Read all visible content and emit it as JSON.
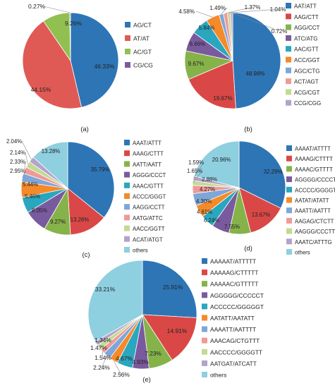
{
  "chart_data": [
    {
      "type": "pie",
      "panel_label": "(a)",
      "categories": [
        "AG/CT",
        "AT/AT",
        "AC/GT",
        "CG/CG"
      ],
      "values": [
        46.33,
        44.15,
        9.26,
        0.27
      ],
      "labels": [
        "46.33%",
        "44.15%",
        "9.26%",
        "0.27%"
      ],
      "colors": [
        "#2e75b6",
        "#e05a55",
        "#92c050",
        "#7a5a9e"
      ]
    },
    {
      "type": "pie",
      "panel_label": "(b)",
      "categories": [
        "AAT/ATT",
        "AAG/CTT",
        "AGG/CCT",
        "ATC/ATG",
        "AAC/GTT",
        "ACC/GGT",
        "AGC/CTG",
        "ACT/AGT",
        "ACG/CGT",
        "CCG/CGG"
      ],
      "values": [
        48.98,
        19.67,
        9.67,
        6.66,
        5.84,
        4.58,
        1.49,
        1.37,
        1.04,
        0.72
      ],
      "labels": [
        "48.98%",
        "19.67%",
        "9.67%",
        "6.66%",
        "5.84%",
        "4.58%",
        "1.49%",
        "1.37%",
        "1.04%",
        "0.72%"
      ],
      "colors": [
        "#2e75b6",
        "#d94846",
        "#86b24a",
        "#7a5a9e",
        "#2aa6bf",
        "#f48a2a",
        "#7ea6d8",
        "#ef9a98",
        "#c3da93",
        "#b4a2cc"
      ]
    },
    {
      "type": "pie",
      "panel_label": "(c)",
      "categories": [
        "AAAT/ATTT",
        "AAAG/CTTT",
        "AATT/AATT",
        "AGGG/CCCT",
        "AAAC/GTTT",
        "ACCC/GGGT",
        "AAGG/CCTT",
        "AATG/ATTC",
        "AACC/GGTT",
        "ACAT/ATGT",
        "others"
      ],
      "values": [
        35.79,
        13.26,
        9.27,
        8.05,
        5.46,
        5.44,
        2.95,
        2.33,
        2.14,
        2.04,
        13.28
      ],
      "labels": [
        "35.79%",
        "13.26%",
        "9.27%",
        "8.05%",
        "5.46%",
        "5.44%",
        "2.95%",
        "2.33%",
        "2.14%",
        "2.04%",
        "13.28%"
      ],
      "colors": [
        "#2e75b6",
        "#d94846",
        "#86b24a",
        "#7a5a9e",
        "#2aa6bf",
        "#f48a2a",
        "#7ea6d8",
        "#ef9a98",
        "#c3da93",
        "#b4a2cc",
        "#8ecfe0"
      ]
    },
    {
      "type": "pie",
      "panel_label": "(d)",
      "categories": [
        "AAAAT/ATTTT",
        "AAAAG/CTTTT",
        "AAAAC/GTTTT",
        "AGGGG/CCCCT",
        "ACCCC/GGGGT",
        "AATAT/ATATT",
        "AAATT/AATTT",
        "AAGAG/CTCTT",
        "AAGGG/CCCTT",
        "AAATC/ATTTG",
        "others"
      ],
      "values": [
        32.29,
        13.67,
        7.55,
        6.24,
        4.61,
        4.3,
        4.27,
        2.88,
        1.65,
        1.59,
        20.96
      ],
      "labels": [
        "32.29%",
        "13.67%",
        "7.55%",
        "6.24%",
        "4.61%",
        "4.30%",
        "4.27%",
        "2.88%",
        "1.65%",
        "1.59%",
        "20.96%"
      ],
      "colors": [
        "#2e75b6",
        "#d94846",
        "#86b24a",
        "#7a5a9e",
        "#2aa6bf",
        "#f48a2a",
        "#7ea6d8",
        "#ef9a98",
        "#c3da93",
        "#b4a2cc",
        "#8ecfe0"
      ]
    },
    {
      "type": "pie",
      "panel_label": "(e)",
      "categories": [
        "AAAAAT/ATTTTT",
        "AAAAAG/CTTTTT",
        "AAAAAC/GTTTTT",
        "AGGGGG/CCCCCT",
        "ACCCCC/GGGGGT",
        "AATATT/AATATT",
        "AAAATT/AATTTT",
        "AAACAG/CTGTTT",
        "AACCCC/GGGGTT",
        "AATGAT/ATCATT",
        "others"
      ],
      "values": [
        25.91,
        14.91,
        7.23,
        4.93,
        4.67,
        2.56,
        2.24,
        1.54,
        1.47,
        1.34,
        33.21
      ],
      "labels": [
        "25.91%",
        "14.91%",
        "7.23%",
        "4.93%",
        "4.67%",
        "2.56%",
        "2.24%",
        "1.54%",
        "1.47%",
        "1.34%",
        "33.21%"
      ],
      "colors": [
        "#2e75b6",
        "#d94846",
        "#86b24a",
        "#7a5a9e",
        "#2aa6bf",
        "#f48a2a",
        "#7ea6d8",
        "#ef9a98",
        "#c3da93",
        "#b4a2cc",
        "#8ecfe0"
      ]
    }
  ]
}
